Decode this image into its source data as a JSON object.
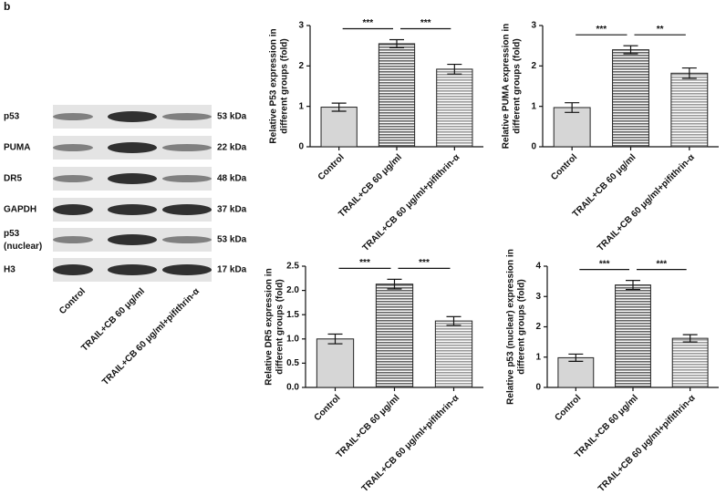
{
  "panel_label": "b",
  "blot": {
    "rows": [
      {
        "label": "p53",
        "size": "53 kDa"
      },
      {
        "label": "PUMA",
        "size": "22 kDa"
      },
      {
        "label": "DR5",
        "size": "48 kDa"
      },
      {
        "label": "GAPDH",
        "size": "37 kDa"
      },
      {
        "label": "p53 (nuclear)",
        "size": "53 kDa"
      },
      {
        "label": "H3",
        "size": "17 kDa"
      }
    ],
    "lanes": [
      "Control",
      "TRAIL+CB 60 μg/ml",
      "TRAIL+CB 60 μg/ml+pifithrin-α"
    ]
  },
  "chart_data": [
    {
      "type": "bar",
      "ylabel": [
        "Relative P53 expression in",
        "different groups (fold)"
      ],
      "categories": [
        "Control",
        "TRAIL+CB 60 μg/ml",
        "TRAIL+CB 60 μg/ml+pifithrin-α"
      ],
      "values": [
        0.98,
        2.55,
        1.92
      ],
      "errors": [
        0.1,
        0.1,
        0.12
      ],
      "colors": [
        "#d6d6d6",
        "#666666",
        "#9a9a9a"
      ],
      "patterns": [
        "solid",
        "stripes",
        "stripes"
      ],
      "annotations": [
        "***",
        "***"
      ],
      "ylim": [
        0,
        3
      ],
      "yticks": [
        0,
        1,
        2,
        3
      ]
    },
    {
      "type": "bar",
      "ylabel": [
        "Relative PUMA expression in",
        "different groups (fold)"
      ],
      "categories": [
        "Control",
        "TRAIL+CB 60 μg/ml",
        "TRAIL+CB 60 μg/ml+pifithrin-α"
      ],
      "values": [
        0.97,
        2.4,
        1.82
      ],
      "errors": [
        0.12,
        0.1,
        0.13
      ],
      "colors": [
        "#d6d6d6",
        "#666666",
        "#9a9a9a"
      ],
      "patterns": [
        "solid",
        "stripes",
        "stripes"
      ],
      "annotations": [
        "***",
        "**"
      ],
      "ylim": [
        0,
        3
      ],
      "yticks": [
        0,
        1,
        2,
        3
      ]
    },
    {
      "type": "bar",
      "ylabel": [
        "Relative DR5 expression in",
        "different groups (fold)"
      ],
      "categories": [
        "Control",
        "TRAIL+CB 60 μg/ml",
        "TRAIL+CB 60 μg/ml+pifithrin-α"
      ],
      "values": [
        1.0,
        2.13,
        1.37
      ],
      "errors": [
        0.1,
        0.1,
        0.09
      ],
      "colors": [
        "#d6d6d6",
        "#666666",
        "#9a9a9a"
      ],
      "patterns": [
        "solid",
        "stripes",
        "stripes"
      ],
      "annotations": [
        "***",
        "***"
      ],
      "ylim": [
        0,
        2.5
      ],
      "yticks": [
        {
          "value": 0,
          "label": "0.0"
        },
        {
          "value": 0.5,
          "label": "0.5"
        },
        {
          "value": 1,
          "label": "1.0"
        },
        {
          "value": 1.5,
          "label": "1.5"
        },
        {
          "value": 2,
          "label": "2.0"
        },
        {
          "value": 2.5,
          "label": "2.5"
        }
      ]
    },
    {
      "type": "bar",
      "ylabel": [
        "Relative p53 (nuclear) expression in",
        "different groups (fold)"
      ],
      "categories": [
        "Control",
        "TRAIL+CB 60 μg/ml",
        "TRAIL+CB 60 μg/ml+pifithrin-α"
      ],
      "values": [
        0.98,
        3.38,
        1.62
      ],
      "errors": [
        0.12,
        0.15,
        0.12
      ],
      "colors": [
        "#d6d6d6",
        "#666666",
        "#9a9a9a"
      ],
      "patterns": [
        "solid",
        "stripes",
        "stripes"
      ],
      "annotations": [
        "***",
        "***"
      ],
      "ylim": [
        0,
        4
      ],
      "yticks": [
        0,
        1,
        2,
        3,
        4
      ]
    }
  ]
}
